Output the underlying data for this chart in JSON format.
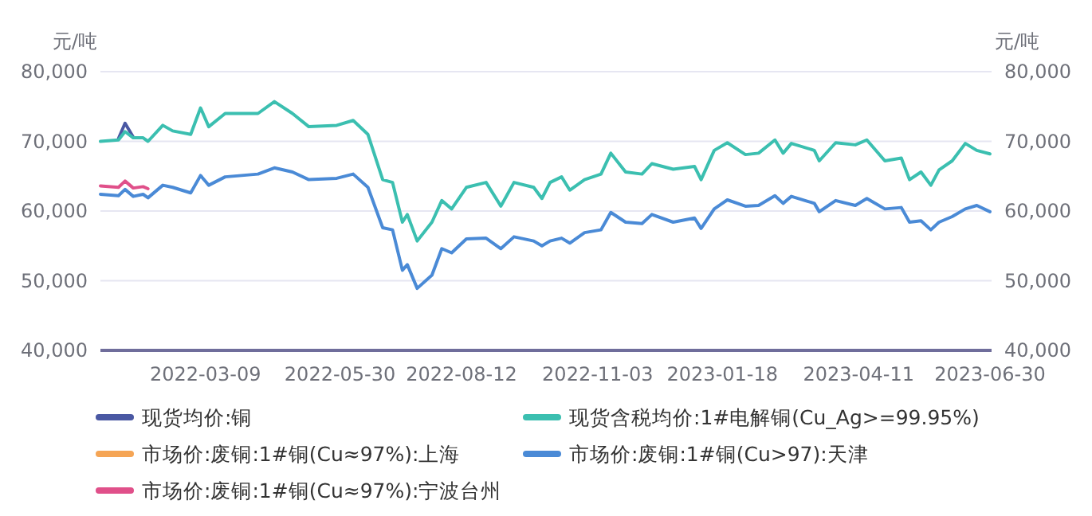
{
  "chart_data": {
    "type": "line",
    "ylabel": "元/吨",
    "y2label": "元/吨",
    "xlim": [
      "2022-01-04",
      "2023-07-01"
    ],
    "xticks": [
      "2022-03-09",
      "2022-05-30",
      "2022-08-12",
      "2022-11-03",
      "2023-01-18",
      "2023-04-11",
      "2023-06-30"
    ],
    "ylim": [
      40000,
      80000
    ],
    "yticks": [
      {
        "value": 40000,
        "label": "40,000"
      },
      {
        "value": 50000,
        "label": "50,000"
      },
      {
        "value": 60000,
        "label": "60,000"
      },
      {
        "value": 70000,
        "label": "70,000"
      },
      {
        "value": 80000,
        "label": "80,000"
      }
    ],
    "y2lim": [
      40000,
      80000
    ],
    "y2ticks": [
      {
        "value": 40000,
        "label": "40,000"
      },
      {
        "value": 50000,
        "label": "50,000"
      },
      {
        "value": 60000,
        "label": "60,000"
      },
      {
        "value": 70000,
        "label": "70,000"
      },
      {
        "value": 80000,
        "label": "80,000"
      }
    ],
    "grid": "y",
    "legend": "bottom",
    "series": [
      {
        "name": "现货均价:铜",
        "color": "#4a58a3",
        "x": [
          "2022-01-15",
          "2022-01-19",
          "2022-01-24"
        ],
        "values": [
          70400,
          72600,
          70600
        ]
      },
      {
        "name": "现货含税均价:1#电解铜(Cu_Ag>=99.95%)",
        "color": "#3bbfb0",
        "x": [
          "2022-01-04",
          "2022-01-15",
          "2022-01-19",
          "2022-01-24",
          "2022-01-30",
          "2022-02-02",
          "2022-02-11",
          "2022-02-17",
          "2022-02-28",
          "2022-03-06",
          "2022-03-11",
          "2022-03-21",
          "2022-04-10",
          "2022-04-20",
          "2022-05-01",
          "2022-05-11",
          "2022-05-28",
          "2022-06-07",
          "2022-06-16",
          "2022-06-25",
          "2022-07-01",
          "2022-07-07",
          "2022-07-10",
          "2022-07-16",
          "2022-07-25",
          "2022-07-31",
          "2022-08-06",
          "2022-08-15",
          "2022-08-27",
          "2022-09-05",
          "2022-09-13",
          "2022-09-25",
          "2022-09-30",
          "2022-10-05",
          "2022-10-12",
          "2022-10-17",
          "2022-10-26",
          "2022-11-05",
          "2022-11-11",
          "2022-11-20",
          "2022-11-30",
          "2022-12-06",
          "2022-12-19",
          "2023-01-01",
          "2023-01-05",
          "2023-01-13",
          "2023-01-21",
          "2023-02-01",
          "2023-02-09",
          "2023-02-19",
          "2023-02-24",
          "2023-03-01",
          "2023-03-15",
          "2023-03-18",
          "2023-03-28",
          "2023-04-09",
          "2023-04-16",
          "2023-04-27",
          "2023-05-07",
          "2023-05-12",
          "2023-05-19",
          "2023-05-25",
          "2023-05-30",
          "2023-06-07",
          "2023-06-15",
          "2023-06-22",
          "2023-06-30"
        ],
        "values": [
          70000,
          70200,
          71400,
          70500,
          70500,
          70000,
          72300,
          71500,
          71000,
          74800,
          72100,
          74000,
          74000,
          75700,
          74000,
          72100,
          72300,
          73000,
          71000,
          64500,
          64100,
          58400,
          59500,
          55700,
          58400,
          61500,
          60300,
          63400,
          64100,
          60700,
          64100,
          63400,
          61800,
          64100,
          64900,
          63000,
          64500,
          65300,
          68300,
          65600,
          65300,
          66800,
          66000,
          66400,
          64500,
          68700,
          69800,
          68100,
          68300,
          70200,
          68300,
          69700,
          68700,
          67200,
          69800,
          69500,
          70200,
          67200,
          67600,
          64500,
          65600,
          63700,
          65900,
          67200,
          69700,
          68700,
          68200
        ]
      },
      {
        "name": "市场价:废铜:1#铜(Cu≈97%):上海",
        "color": "#f5a555"
      },
      {
        "name": "市场价:废铜:1#铜(Cu>97):天津",
        "color": "#4a8ad6",
        "x": [
          "2022-01-04",
          "2022-01-15",
          "2022-01-19",
          "2022-01-24",
          "2022-01-30",
          "2022-02-02",
          "2022-02-11",
          "2022-02-17",
          "2022-02-28",
          "2022-03-06",
          "2022-03-11",
          "2022-03-21",
          "2022-04-10",
          "2022-04-20",
          "2022-05-01",
          "2022-05-11",
          "2022-05-28",
          "2022-06-07",
          "2022-06-16",
          "2022-06-25",
          "2022-07-01",
          "2022-07-07",
          "2022-07-10",
          "2022-07-16",
          "2022-07-25",
          "2022-07-31",
          "2022-08-06",
          "2022-08-15",
          "2022-08-27",
          "2022-09-05",
          "2022-09-13",
          "2022-09-25",
          "2022-09-30",
          "2022-10-05",
          "2022-10-12",
          "2022-10-17",
          "2022-10-26",
          "2022-11-05",
          "2022-11-11",
          "2022-11-20",
          "2022-11-30",
          "2022-12-06",
          "2022-12-19",
          "2023-01-01",
          "2023-01-05",
          "2023-01-13",
          "2023-01-21",
          "2023-02-01",
          "2023-02-09",
          "2023-02-19",
          "2023-02-24",
          "2023-03-01",
          "2023-03-15",
          "2023-03-18",
          "2023-03-28",
          "2023-04-09",
          "2023-04-16",
          "2023-04-27",
          "2023-05-07",
          "2023-05-12",
          "2023-05-19",
          "2023-05-25",
          "2023-05-30",
          "2023-06-07",
          "2023-06-15",
          "2023-06-22",
          "2023-06-30"
        ],
        "values": [
          62400,
          62200,
          63100,
          62100,
          62400,
          61900,
          63700,
          63400,
          62600,
          65100,
          63700,
          64900,
          65300,
          66200,
          65600,
          64500,
          64700,
          65300,
          63400,
          57600,
          57300,
          51500,
          52300,
          48900,
          50800,
          54600,
          54000,
          56000,
          56100,
          54600,
          56300,
          55700,
          55000,
          55700,
          56100,
          55400,
          56900,
          57300,
          59800,
          58400,
          58200,
          59500,
          58400,
          59000,
          57500,
          60300,
          61600,
          60700,
          60800,
          62200,
          61100,
          62100,
          61100,
          59900,
          61500,
          60800,
          61800,
          60300,
          60500,
          58400,
          58600,
          57300,
          58400,
          59200,
          60300,
          60800,
          59900
        ]
      },
      {
        "name": "市场价:废铜:1#铜(Cu≈97%):宁波台州",
        "color": "#e0508a",
        "x": [
          "2022-01-04",
          "2022-01-15",
          "2022-01-19",
          "2022-01-24",
          "2022-01-30",
          "2022-02-02"
        ],
        "values": [
          63600,
          63400,
          64300,
          63300,
          63500,
          63200
        ]
      }
    ]
  }
}
